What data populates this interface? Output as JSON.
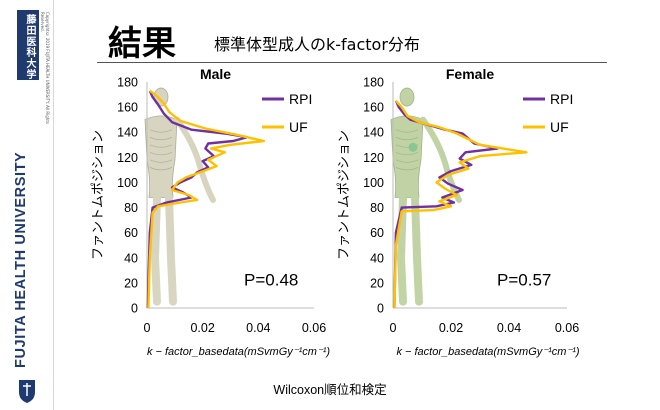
{
  "sidebar": {
    "logo_text": "藤田医科大学",
    "copyright": "Copyright© 2019 FUJITA HEALTH UNIVERSITY. All Rights Reserved.",
    "university": "FUJITA HEALTH UNIVERSITY"
  },
  "title": {
    "main": "結果",
    "sub": "標準体型成人のk-factor分布"
  },
  "footer": "Wilcoxon順位和検定",
  "colors": {
    "rpi": "#7030a0",
    "uf": "#ffc000",
    "brand": "#1f3a6e"
  },
  "chart_data": [
    {
      "type": "line",
      "title": "Male",
      "ylabel": "ファントムポジション",
      "xlabel": "k − factor_basedata(mSvmGy⁻¹cm⁻¹)",
      "xlim": [
        0,
        0.06
      ],
      "ylim": [
        0,
        180
      ],
      "xticks": [
        "0",
        "0.02",
        "0.04",
        "0.06"
      ],
      "yticks": [
        "0",
        "20",
        "40",
        "60",
        "80",
        "100",
        "120",
        "140",
        "160",
        "180"
      ],
      "annotation": "P=0.48",
      "legend": [
        "RPI",
        "UF"
      ],
      "series": [
        {
          "name": "RPI",
          "color": "#7030a0",
          "points": [
            [
              0.001,
              173
            ],
            [
              0.002,
              168
            ],
            [
              0.004,
              162
            ],
            [
              0.006,
              155
            ],
            [
              0.009,
              148
            ],
            [
              0.016,
              142
            ],
            [
              0.028,
              139
            ],
            [
              0.036,
              136
            ],
            [
              0.031,
              133
            ],
            [
              0.022,
              131
            ],
            [
              0.021,
              127
            ],
            [
              0.024,
              121
            ],
            [
              0.02,
              117
            ],
            [
              0.022,
              112
            ],
            [
              0.018,
              108
            ],
            [
              0.016,
              104
            ],
            [
              0.012,
              100
            ],
            [
              0.009,
              96
            ],
            [
              0.013,
              92
            ],
            [
              0.016,
              88
            ],
            [
              0.007,
              84
            ],
            [
              0.002,
              80
            ],
            [
              0.001,
              60
            ],
            [
              0.0005,
              20
            ],
            [
              0.0003,
              0
            ]
          ]
        },
        {
          "name": "UF",
          "color": "#ffc000",
          "points": [
            [
              0.001,
              173
            ],
            [
              0.003,
              170
            ],
            [
              0.006,
              163
            ],
            [
              0.008,
              156
            ],
            [
              0.012,
              149
            ],
            [
              0.021,
              143
            ],
            [
              0.032,
              138
            ],
            [
              0.042,
              133
            ],
            [
              0.03,
              130
            ],
            [
              0.023,
              127
            ],
            [
              0.028,
              124
            ],
            [
              0.022,
              118
            ],
            [
              0.025,
              113
            ],
            [
              0.019,
              108
            ],
            [
              0.014,
              104
            ],
            [
              0.011,
              100
            ],
            [
              0.009,
              94
            ],
            [
              0.015,
              90
            ],
            [
              0.018,
              86
            ],
            [
              0.012,
              84
            ],
            [
              0.004,
              81
            ],
            [
              0.002,
              76
            ],
            [
              0.001,
              40
            ],
            [
              0.0005,
              0
            ]
          ]
        }
      ]
    },
    {
      "type": "line",
      "title": "Female",
      "ylabel": "ファントムポジション",
      "xlabel": "k − factor_basedata(mSvmGy⁻¹cm⁻¹)",
      "xlim": [
        0,
        0.06
      ],
      "ylim": [
        0,
        180
      ],
      "xticks": [
        "0",
        "0.02",
        "0.04",
        "0.06"
      ],
      "yticks": [
        "0",
        "20",
        "40",
        "60",
        "80",
        "100",
        "120",
        "140",
        "160",
        "180"
      ],
      "annotation": "P=0.57",
      "legend": [
        "RPI",
        "UF"
      ],
      "series": [
        {
          "name": "RPI",
          "color": "#7030a0",
          "points": [
            [
              0.001,
              165
            ],
            [
              0.002,
              160
            ],
            [
              0.004,
              154
            ],
            [
              0.006,
              150
            ],
            [
              0.012,
              146
            ],
            [
              0.018,
              142
            ],
            [
              0.024,
              139
            ],
            [
              0.028,
              131
            ],
            [
              0.036,
              127
            ],
            [
              0.025,
              124
            ],
            [
              0.023,
              119
            ],
            [
              0.027,
              114
            ],
            [
              0.02,
              109
            ],
            [
              0.016,
              104
            ],
            [
              0.019,
              99
            ],
            [
              0.024,
              94
            ],
            [
              0.017,
              88
            ],
            [
              0.021,
              84
            ],
            [
              0.015,
              81
            ],
            [
              0.003,
              80
            ],
            [
              0.001,
              60
            ],
            [
              0.0005,
              0
            ]
          ]
        },
        {
          "name": "UF",
          "color": "#ffc000",
          "points": [
            [
              0.001,
              165
            ],
            [
              0.003,
              160
            ],
            [
              0.005,
              153
            ],
            [
              0.009,
              148
            ],
            [
              0.016,
              144
            ],
            [
              0.022,
              139
            ],
            [
              0.03,
              130
            ],
            [
              0.046,
              124
            ],
            [
              0.03,
              121
            ],
            [
              0.023,
              116
            ],
            [
              0.026,
              111
            ],
            [
              0.019,
              106
            ],
            [
              0.015,
              100
            ],
            [
              0.018,
              95
            ],
            [
              0.022,
              90
            ],
            [
              0.016,
              85
            ],
            [
              0.02,
              81
            ],
            [
              0.014,
              78
            ],
            [
              0.003,
              77
            ],
            [
              0.001,
              50
            ],
            [
              0.0005,
              0
            ]
          ]
        }
      ]
    }
  ]
}
